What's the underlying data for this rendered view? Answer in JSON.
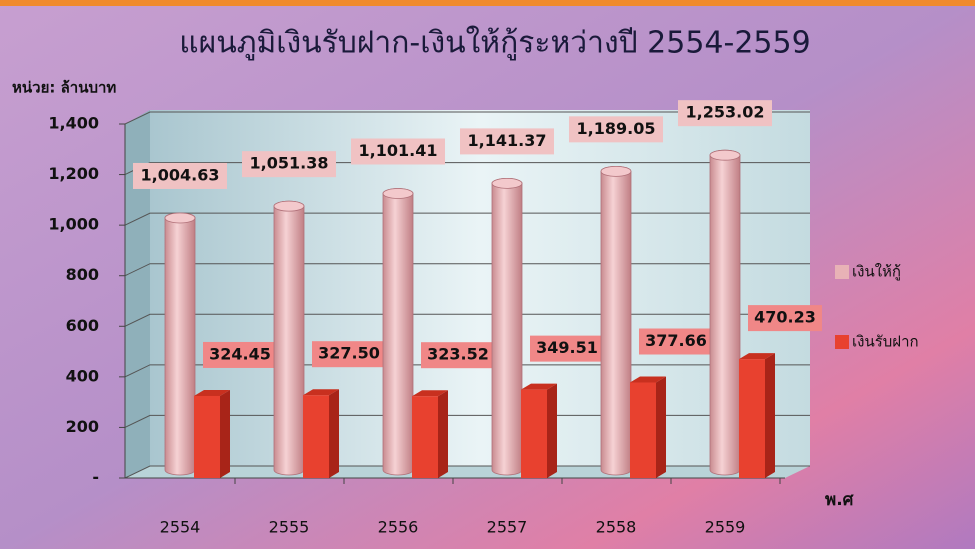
{
  "chart_data": {
    "type": "bar3d",
    "title": "แผนภูมิเงินรับฝาก-เงินให้กู้ระหว่างปี 2554-2559",
    "y_axis_label": "หน่วย: ล้านบาท",
    "x_axis_label": "พ.ศ",
    "categories": [
      "2554",
      "2555",
      "2556",
      "2557",
      "2558",
      "2559"
    ],
    "series": [
      {
        "name": "เงินให้กู้",
        "color": "#e8b2b6",
        "values": [
          1004.63,
          1051.38,
          1101.41,
          1141.37,
          1189.05,
          1253.02
        ],
        "value_labels": [
          "1,004.63",
          "1,051.38",
          "1,101.41",
          "1,141.37",
          "1,189.05",
          "1,253.02"
        ]
      },
      {
        "name": "เงินรับฝาก",
        "color": "#e8412f",
        "values": [
          324.45,
          327.5,
          323.52,
          349.51,
          377.66,
          470.23
        ],
        "value_labels": [
          "324.45",
          "327.50",
          "323.52",
          "349.51",
          "377.66",
          "470.23"
        ]
      }
    ],
    "ylim": [
      0,
      1400
    ],
    "yticks": [
      {
        "value": 0,
        "label": "-"
      },
      200,
      400,
      600,
      800,
      {
        "value": 1000,
        "label": "1,000"
      },
      {
        "value": 1200,
        "label": "1,200"
      },
      {
        "value": 1400,
        "label": "1,400"
      }
    ],
    "grid": true
  }
}
